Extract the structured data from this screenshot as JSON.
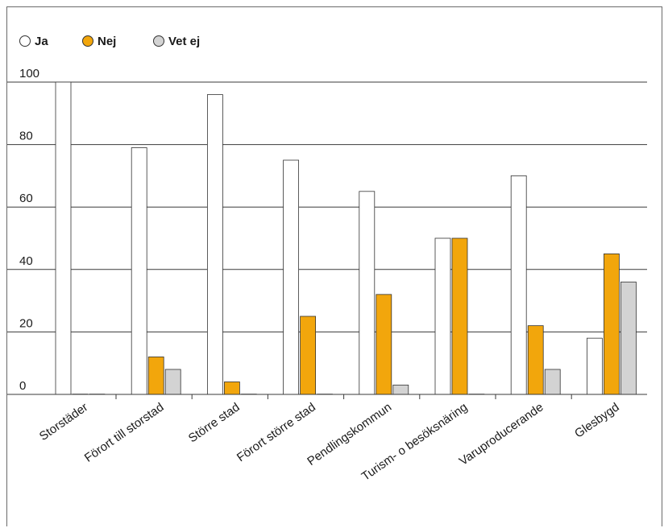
{
  "chart_data": {
    "type": "bar",
    "categories": [
      "Storstäder",
      "Förort till storstad",
      "Större stad",
      "Förort större stad",
      "Pendlingskommun",
      "Turism- o besöksnäring",
      "Varuproducerande",
      "Glesbygd"
    ],
    "series": [
      {
        "name": "Ja",
        "color": "#ffffff",
        "values": [
          100,
          79,
          96,
          75,
          65,
          50,
          70,
          18
        ]
      },
      {
        "name": "Nej",
        "color": "#f2a60c",
        "values": [
          0,
          12,
          4,
          25,
          32,
          50,
          22,
          45
        ]
      },
      {
        "name": "Vet ej",
        "color": "#d3d3d3",
        "values": [
          0,
          8,
          0,
          0,
          3,
          0,
          8,
          36
        ]
      }
    ],
    "yticks": [
      "0",
      "20",
      "40",
      "60",
      "80",
      "100"
    ],
    "ylim": [
      0,
      100
    ],
    "legend_position": "top-left",
    "grid": true
  }
}
